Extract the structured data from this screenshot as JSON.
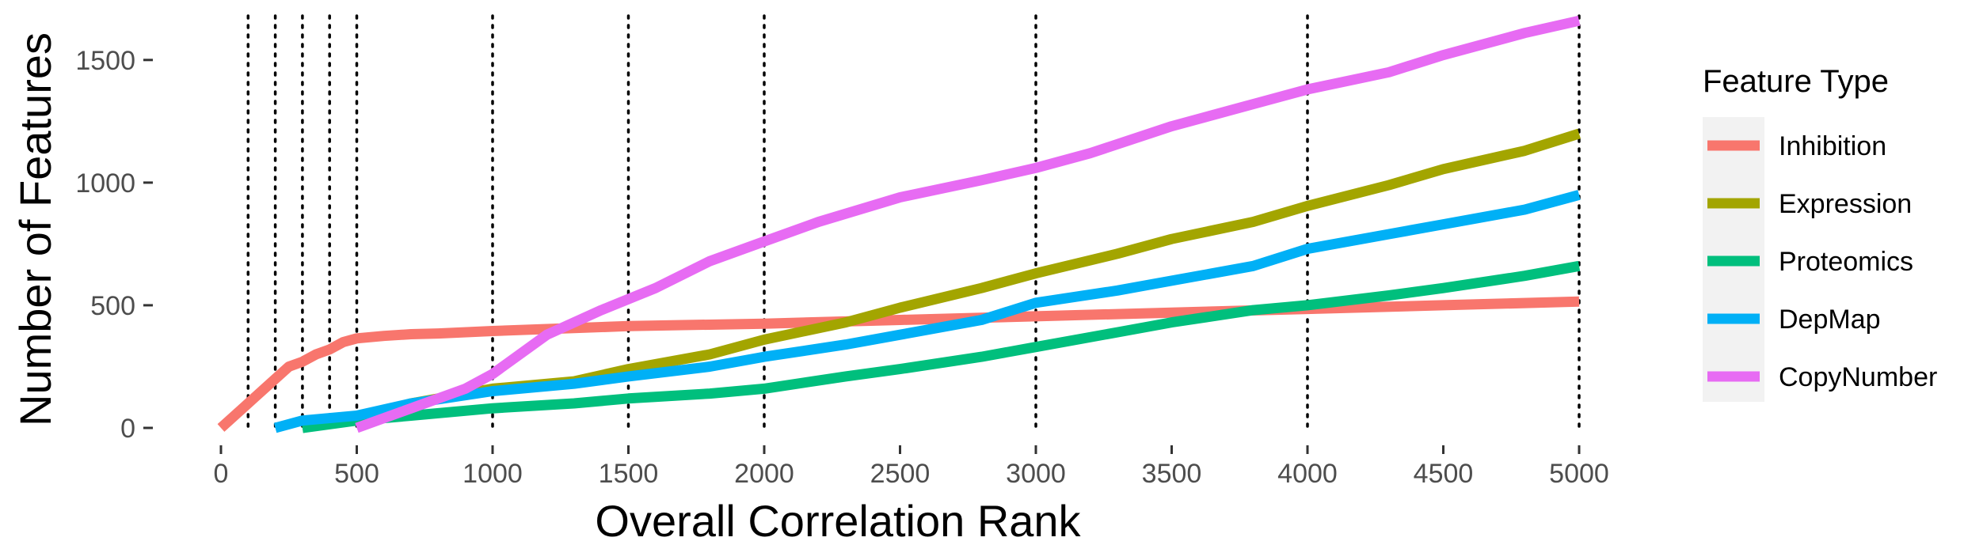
{
  "chart_data": {
    "type": "line",
    "title": "",
    "xlabel": "Overall Correlation Rank",
    "ylabel": "Number of Features",
    "xlim": [
      0,
      5000
    ],
    "ylim": [
      0,
      1680
    ],
    "x_ticks": [
      0,
      500,
      1000,
      1500,
      2000,
      2500,
      3000,
      3500,
      4000,
      4500,
      5000
    ],
    "x_tick_labels": [
      "0",
      "500",
      "1000",
      "1500",
      "2000",
      "2500",
      "3000",
      "3500",
      "4000",
      "4500",
      "5000"
    ],
    "y_ticks": [
      0,
      500,
      1000,
      1500
    ],
    "y_tick_labels": [
      "0",
      "500",
      "1000",
      "1500"
    ],
    "vlines": [
      100,
      200,
      300,
      400,
      500,
      1000,
      1500,
      2000,
      3000,
      4000,
      5000
    ],
    "grid": false,
    "legend": {
      "title": "Feature Type",
      "position": "right"
    },
    "series": [
      {
        "name": "Inhibition",
        "color": "#F8766D",
        "x": [
          0,
          100,
          200,
          250,
          300,
          350,
          400,
          450,
          500,
          600,
          700,
          800,
          1000,
          1500,
          2000,
          2500,
          3000,
          3500,
          4000,
          4500,
          5000
        ],
        "y": [
          0,
          100,
          200,
          250,
          270,
          300,
          320,
          350,
          365,
          375,
          382,
          385,
          395,
          415,
          425,
          440,
          455,
          470,
          485,
          500,
          515
        ]
      },
      {
        "name": "Expression",
        "color": "#A3A500",
        "x": [
          300,
          500,
          700,
          1000,
          1300,
          1500,
          1800,
          2000,
          2300,
          2500,
          2800,
          3000,
          3300,
          3500,
          3800,
          4000,
          4300,
          4500,
          4800,
          5000
        ],
        "y": [
          0,
          40,
          100,
          160,
          190,
          240,
          300,
          360,
          430,
          490,
          570,
          630,
          710,
          770,
          840,
          905,
          990,
          1055,
          1130,
          1200
        ]
      },
      {
        "name": "Proteomics",
        "color": "#00BF7D",
        "x": [
          300,
          500,
          700,
          1000,
          1300,
          1500,
          1800,
          2000,
          2300,
          2500,
          2800,
          3000,
          3300,
          3500,
          3800,
          4000,
          4300,
          4500,
          4800,
          5000
        ],
        "y": [
          0,
          30,
          50,
          80,
          100,
          120,
          140,
          160,
          210,
          240,
          290,
          330,
          390,
          430,
          480,
          500,
          540,
          570,
          620,
          660
        ]
      },
      {
        "name": "DepMap",
        "color": "#00B0F6",
        "x": [
          200,
          300,
          500,
          700,
          1000,
          1300,
          1500,
          1800,
          2000,
          2300,
          2500,
          2800,
          3000,
          3300,
          3500,
          3800,
          4000,
          4300,
          4500,
          4800,
          5000
        ],
        "y": [
          0,
          30,
          50,
          100,
          150,
          180,
          210,
          250,
          290,
          340,
          380,
          440,
          510,
          560,
          600,
          660,
          730,
          790,
          830,
          890,
          950
        ]
      },
      {
        "name": "CopyNumber",
        "color": "#E76BF3",
        "x": [
          500,
          700,
          900,
          1000,
          1200,
          1400,
          1600,
          1800,
          2000,
          2200,
          2500,
          2800,
          3000,
          3200,
          3500,
          3800,
          4000,
          4300,
          4500,
          4800,
          5000
        ],
        "y": [
          0,
          80,
          160,
          220,
          380,
          480,
          570,
          680,
          760,
          840,
          940,
          1010,
          1060,
          1120,
          1230,
          1320,
          1380,
          1450,
          1520,
          1610,
          1660
        ]
      }
    ]
  }
}
